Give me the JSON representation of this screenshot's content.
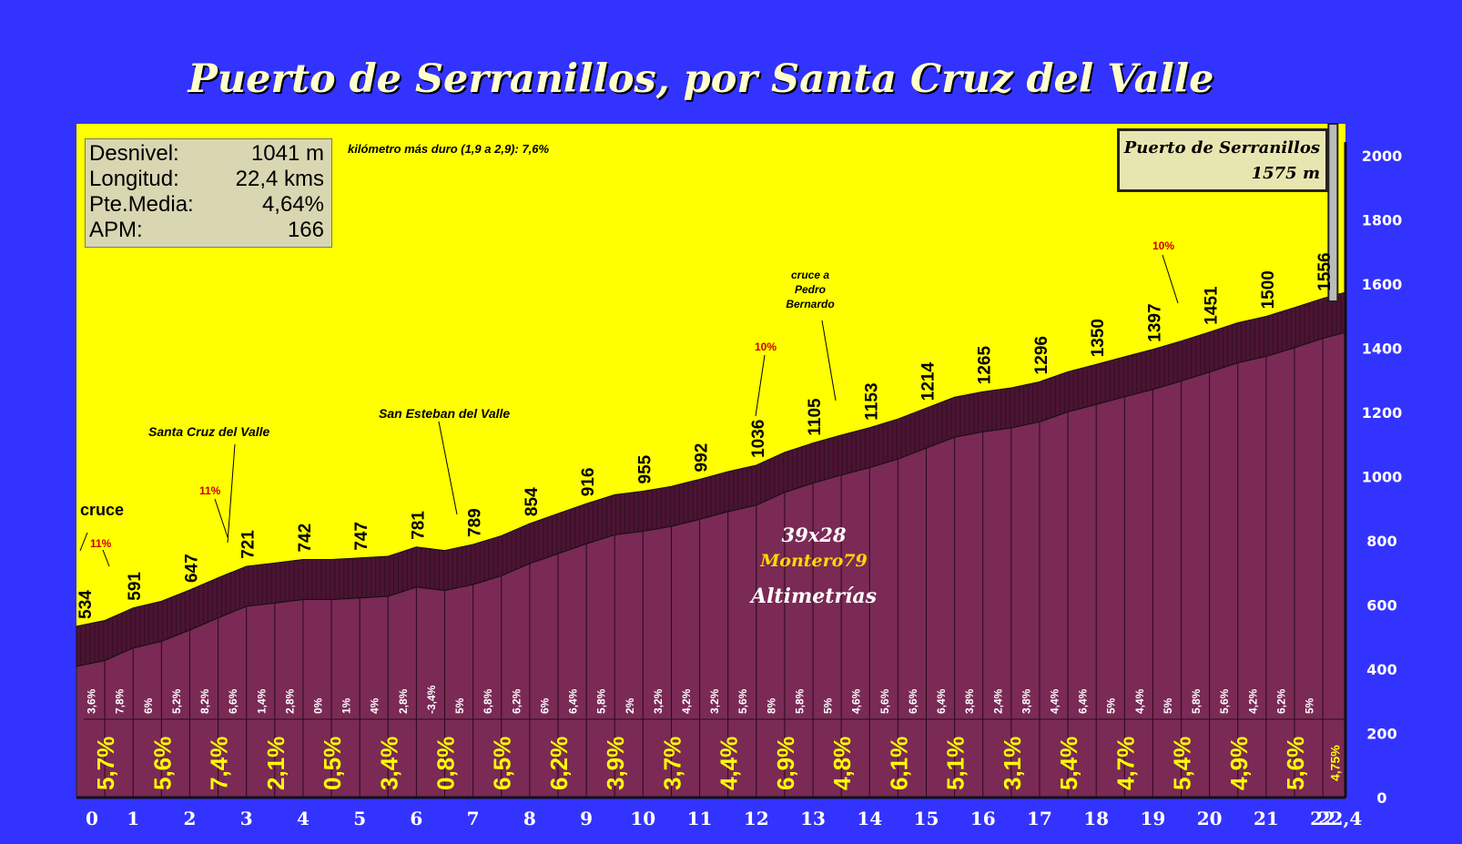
{
  "title": "Puerto de Serranillos, por Santa Cruz del Valle",
  "stats": {
    "rows": [
      {
        "label": "Desnivel:",
        "value": "1041 m"
      },
      {
        "label": "Longitud:",
        "value": "22,4 kms"
      },
      {
        "label": "Pte.Media:",
        "value": "4,64%"
      },
      {
        "label": "APM:",
        "value": "166"
      }
    ]
  },
  "hardest_km": "kilómetro más duro (1,9 a 2,9):  7,6%",
  "summit": {
    "name": "Puerto de Serranillos",
    "altitude": "1575 m"
  },
  "credits": {
    "size": "39x28",
    "author": "Montero79",
    "brand": "Altimetrías"
  },
  "colors": {
    "background": "#3333ff",
    "sky": "#ffff00",
    "profile": "#7a2a55",
    "band": "#4a1432",
    "yellow_text": "#ffff00",
    "red_text": "#cc0000"
  },
  "chart_data": {
    "type": "area",
    "xlim": [
      0,
      22.4
    ],
    "ylim": [
      0,
      2100
    ],
    "x_ticks": [
      "0",
      "1",
      "2",
      "3",
      "4",
      "5",
      "6",
      "7",
      "8",
      "9",
      "10",
      "11",
      "12",
      "13",
      "14",
      "15",
      "16",
      "17",
      "18",
      "19",
      "20",
      "21",
      "22",
      "22,4"
    ],
    "x_tick_values": [
      0,
      1,
      2,
      3,
      4,
      5,
      6,
      7,
      8,
      9,
      10,
      11,
      12,
      13,
      14,
      15,
      16,
      17,
      18,
      19,
      20,
      21,
      22,
      22.4
    ],
    "y_ticks": [
      0,
      200,
      400,
      600,
      800,
      1000,
      1200,
      1400,
      1600,
      1800,
      2000
    ],
    "profile": {
      "x": [
        0,
        0.5,
        1,
        1.5,
        2,
        2.5,
        3,
        3.5,
        4,
        4.5,
        5,
        5.5,
        6,
        6.5,
        7,
        7.5,
        8,
        8.5,
        9,
        9.5,
        10,
        10.5,
        11,
        11.5,
        12,
        12.5,
        13,
        13.5,
        14,
        14.5,
        15,
        15.5,
        16,
        16.5,
        17,
        17.5,
        18,
        18.5,
        19,
        19.5,
        20,
        20.5,
        21,
        21.5,
        22,
        22.4
      ],
      "y": [
        534,
        552,
        591,
        612,
        647,
        685,
        721,
        731,
        742,
        742,
        747,
        752,
        781,
        770,
        789,
        816,
        854,
        885,
        916,
        944,
        955,
        970,
        992,
        1016,
        1036,
        1076,
        1105,
        1130,
        1153,
        1180,
        1214,
        1248,
        1265,
        1277,
        1296,
        1327,
        1350,
        1374,
        1397,
        1423,
        1451,
        1480,
        1500,
        1527,
        1556,
        1575
      ]
    },
    "point_labels": [
      {
        "x": 0,
        "value": "534"
      },
      {
        "x": 1,
        "value": "591"
      },
      {
        "x": 2,
        "value": "647"
      },
      {
        "x": 3,
        "value": "721"
      },
      {
        "x": 4,
        "value": "742"
      },
      {
        "x": 5,
        "value": "747"
      },
      {
        "x": 6,
        "value": "781"
      },
      {
        "x": 7,
        "value": "789"
      },
      {
        "x": 8,
        "value": "854"
      },
      {
        "x": 9,
        "value": "916"
      },
      {
        "x": 10,
        "value": "955"
      },
      {
        "x": 11,
        "value": "992"
      },
      {
        "x": 12,
        "value": "1036"
      },
      {
        "x": 13,
        "value": "1105"
      },
      {
        "x": 14,
        "value": "1153"
      },
      {
        "x": 15,
        "value": "1214"
      },
      {
        "x": 16,
        "value": "1265"
      },
      {
        "x": 17,
        "value": "1296"
      },
      {
        "x": 18,
        "value": "1350"
      },
      {
        "x": 19,
        "value": "1397"
      },
      {
        "x": 20,
        "value": "1451"
      },
      {
        "x": 21,
        "value": "1500"
      },
      {
        "x": 22,
        "value": "1556"
      }
    ],
    "half_km_gradients": [
      "3,6%",
      "7,8%",
      "6%",
      "5,2%",
      "8,2%",
      "6,6%",
      "1,4%",
      "2,8%",
      "0%",
      "1%",
      "4%",
      "2,8%",
      "-3,4%",
      "5%",
      "6,8%",
      "6,2%",
      "6%",
      "6,4%",
      "5,8%",
      "2%",
      "3,2%",
      "4,2%",
      "3,2%",
      "5,6%",
      "8%",
      "5,8%",
      "5%",
      "4,6%",
      "5,6%",
      "6,6%",
      "6,4%",
      "3,8%",
      "2,4%",
      "3,8%",
      "4,4%",
      "6,4%",
      "5%",
      "4,4%",
      "5%",
      "5,8%",
      "5,6%",
      "4,2%",
      "6,2%",
      "5%"
    ],
    "km_gradients": [
      "5,7%",
      "5,6%",
      "7,4%",
      "2,1%",
      "0,5%",
      "3,4%",
      "0,8%",
      "6,5%",
      "6,2%",
      "3,9%",
      "3,7%",
      "4,4%",
      "6,9%",
      "4,8%",
      "6,1%",
      "5,1%",
      "3,1%",
      "5,4%",
      "4,7%",
      "5,4%",
      "4,9%",
      "5,6%",
      "4,75%"
    ],
    "annotations": [
      {
        "x": 0.15,
        "text": "cruce",
        "color": "black"
      },
      {
        "x": 0.35,
        "text": "11%",
        "color": "red"
      },
      {
        "x": 2.4,
        "text": "11%",
        "color": "red"
      },
      {
        "x": 2.6,
        "text": "Santa Cruz del Valle",
        "color": "black"
      },
      {
        "x": 6.6,
        "text": "San Esteban del Valle",
        "color": "black"
      },
      {
        "x": 12.1,
        "text": "10%",
        "color": "red"
      },
      {
        "x": 13.2,
        "text": "cruce a",
        "color": "black"
      },
      {
        "x": 13.2,
        "text": "Pedro",
        "color": "black"
      },
      {
        "x": 13.2,
        "text": "Bernardo",
        "color": "black"
      },
      {
        "x": 19.3,
        "text": "10%",
        "color": "red"
      }
    ]
  }
}
